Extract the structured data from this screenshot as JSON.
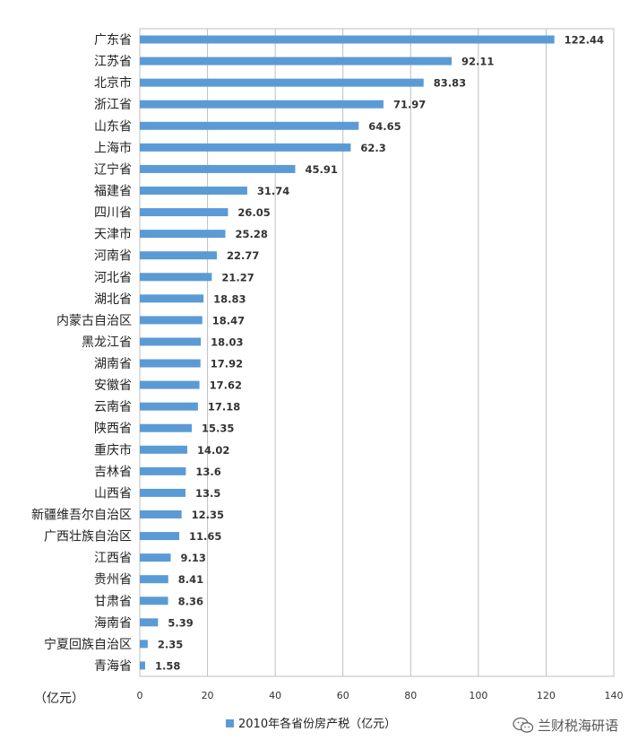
{
  "chart_data": {
    "type": "bar",
    "orientation": "horizontal",
    "categories": [
      "广东省",
      "江苏省",
      "北京市",
      "浙江省",
      "山东省",
      "上海市",
      "辽宁省",
      "福建省",
      "四川省",
      "天津市",
      "河南省",
      "河北省",
      "湖北省",
      "内蒙古自治区",
      "黑龙江省",
      "湖南省",
      "安徽省",
      "云南省",
      "陕西省",
      "重庆市",
      "吉林省",
      "山西省",
      "新疆维吾尔自治区",
      "广西壮族自治区",
      "江西省",
      "贵州省",
      "甘肃省",
      "海南省",
      "宁夏回族自治区",
      "青海省"
    ],
    "value_labels": [
      "122.44",
      "92.11",
      "83.83",
      "71.97",
      "64.65",
      "62.3",
      "45.91",
      "31.74",
      "26.05",
      "25.28",
      "22.77",
      "21.27",
      "18.83",
      "18.47",
      "18.03",
      "17.92",
      "17.62",
      "17.18",
      "15.35",
      "14.02",
      "13.6",
      "13.5",
      "12.35",
      "11.65",
      "9.13",
      "8.41",
      "8.36",
      "5.39",
      "2.35",
      "1.58"
    ],
    "series": [
      {
        "name": "2010年各省份房产税（亿元）",
        "values": [
          122.44,
          92.11,
          83.83,
          71.97,
          64.65,
          62.3,
          45.91,
          31.74,
          26.05,
          25.28,
          22.77,
          21.27,
          18.83,
          18.47,
          18.03,
          17.92,
          17.62,
          17.18,
          15.35,
          14.02,
          13.6,
          13.5,
          12.35,
          11.65,
          9.13,
          8.41,
          8.36,
          5.39,
          2.35,
          1.58
        ],
        "color": "#5b9bd5"
      }
    ],
    "highlight": {
      "category": "甘肃省",
      "label_color": "#e00000"
    },
    "xlim": [
      0,
      140
    ],
    "x_ticks": [
      "0",
      "20",
      "40",
      "60",
      "80",
      "100",
      "120",
      "140"
    ],
    "xunit_label": "（亿元）",
    "grid": "vertical",
    "legend_position": "bottom",
    "bar_color": "#5b9bd5"
  },
  "watermark": {
    "text": "兰财税海研语",
    "icon": "wechat-icon"
  }
}
